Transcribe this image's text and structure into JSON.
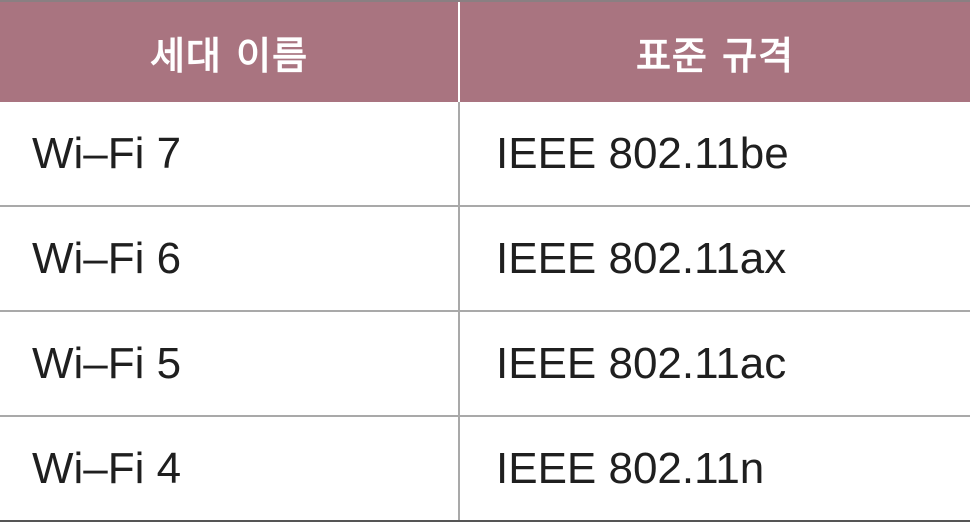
{
  "table": {
    "headers": [
      "세대 이름",
      "표준 규격"
    ],
    "rows": [
      [
        "Wi–Fi 7",
        "IEEE 802.11be"
      ],
      [
        "Wi–Fi 6",
        "IEEE 802.11ax"
      ],
      [
        "Wi–Fi 5",
        "IEEE 802.11ac"
      ],
      [
        "Wi–Fi 4",
        "IEEE 802.11n"
      ]
    ]
  },
  "colors": {
    "header_background": "#a97480",
    "header_text": "#ffffff",
    "body_text": "#1f1f1f",
    "grid_line": "#a9a9a9"
  }
}
